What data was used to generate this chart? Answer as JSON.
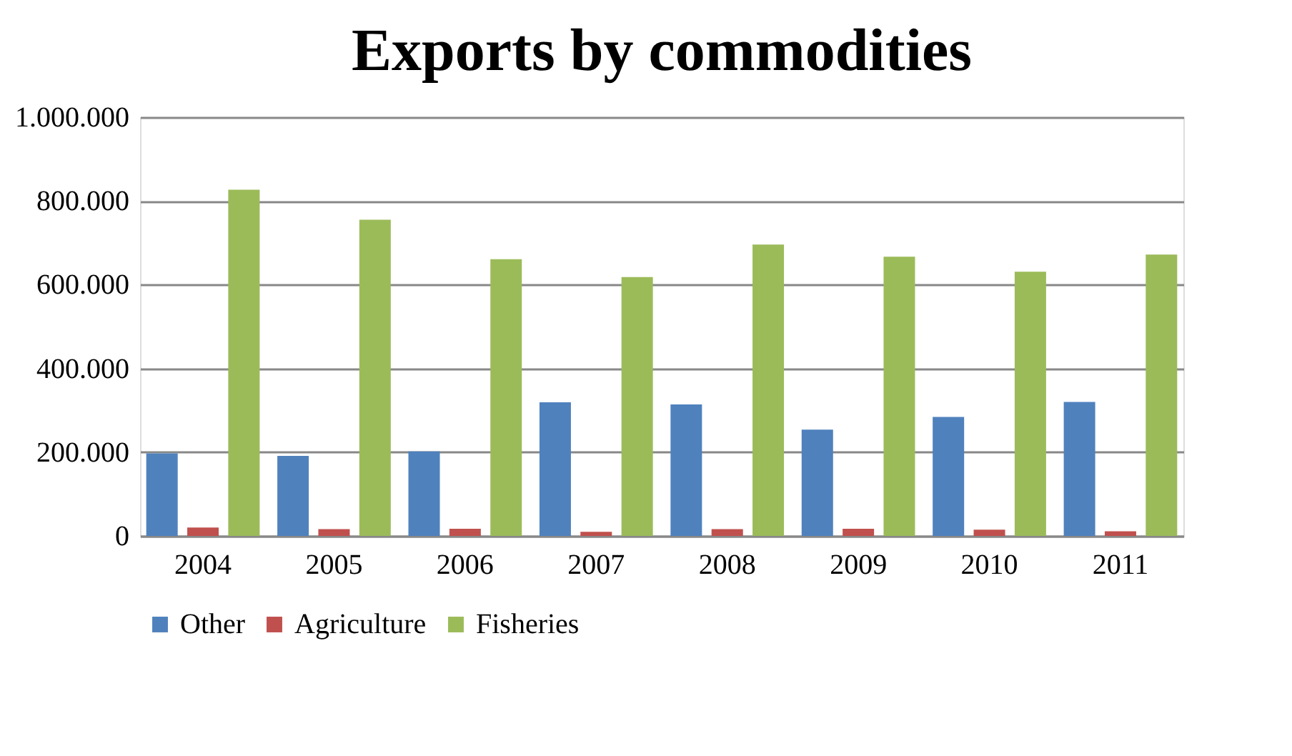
{
  "chart_data": {
    "type": "bar",
    "title": "Exports by commodities",
    "categories": [
      "2004",
      "2005",
      "2006",
      "2007",
      "2008",
      "2009",
      "2010",
      "2011"
    ],
    "series": [
      {
        "name": "Other",
        "color": "#4f81bd",
        "values": [
          197000,
          191000,
          202000,
          319000,
          314000,
          254000,
          284000,
          320000
        ]
      },
      {
        "name": "Agriculture",
        "color": "#c0504d",
        "values": [
          20000,
          16000,
          17000,
          10000,
          16000,
          17000,
          15000,
          11000
        ]
      },
      {
        "name": "Fisheries",
        "color": "#9bbb59",
        "values": [
          827000,
          755000,
          661000,
          618000,
          696000,
          667000,
          631000,
          672000
        ]
      }
    ],
    "ylim": [
      0,
      1000000
    ],
    "yticks": [
      {
        "value": 0,
        "label": "0"
      },
      {
        "value": 200000,
        "label": "200.000"
      },
      {
        "value": 400000,
        "label": "400.000"
      },
      {
        "value": 600000,
        "label": "600.000"
      },
      {
        "value": 800000,
        "label": "800.000"
      },
      {
        "value": 1000000,
        "label": "1.000.000"
      }
    ],
    "grid": "y",
    "legend": "bottom"
  }
}
